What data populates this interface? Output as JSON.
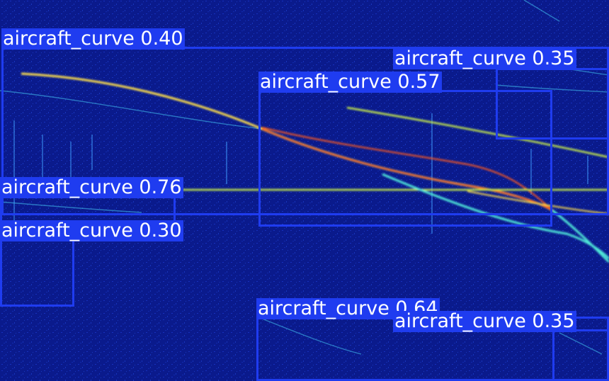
{
  "colors": {
    "background": "#0a1a8c",
    "box": "#1f3cf0",
    "label_text": "#ffffff",
    "trace_hot": "#ff3a1a",
    "trace_warm": "#ffe04a",
    "trace_cool": "#4fe8d8"
  },
  "detections": [
    {
      "label": "aircraft_curve 0.40"
    },
    {
      "label": "aircraft_curve 0.35"
    },
    {
      "label": "aircraft_curve 0.57"
    },
    {
      "label": "aircraft_curve 0.76"
    },
    {
      "label": "aircraft_curve 0.30"
    },
    {
      "label": "aircraft_curve 0.64"
    },
    {
      "label": "aircraft_curve 0.35"
    }
  ]
}
